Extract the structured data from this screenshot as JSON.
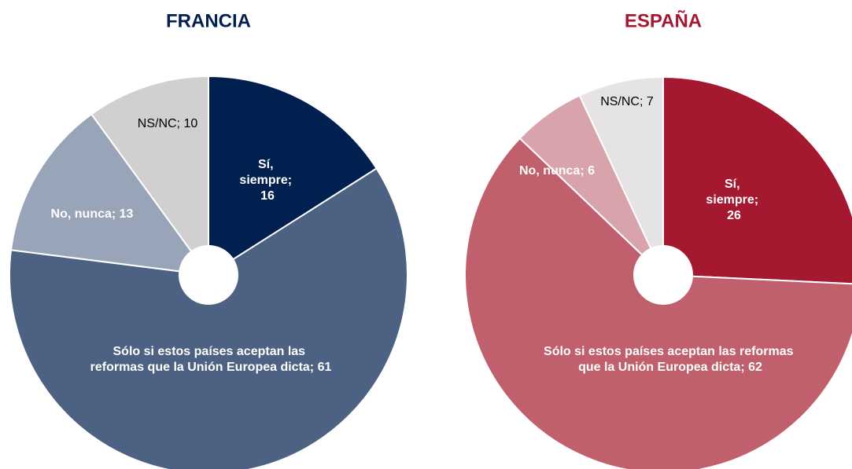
{
  "chart_data": [
    {
      "type": "donut",
      "title": "FRANCIA",
      "title_color": "#012050",
      "categories": [
        "Sí, siempre",
        "Sólo si estos países aceptan las reformas que la Unión Europea dicta",
        "No, nunca",
        "NS/NC"
      ],
      "values": [
        16,
        61,
        13,
        10
      ],
      "value_labels": [
        "Sí, siempre; 16",
        "Sólo si estos países aceptan las reformas que la Unión Europea dicta; 61",
        "No, nunca; 13",
        "NS/NC; 10"
      ],
      "colors": [
        "#012050",
        "#4d6282",
        "#98a5b8",
        "#d1cfd0"
      ]
    },
    {
      "type": "donut",
      "title": "ESPAÑA",
      "title_color": "#a51930",
      "categories": [
        "Sí, siempre",
        "Sólo si estos países aceptan las reformas que la Unión Europea dicta",
        "No, nunca",
        "NS/NC"
      ],
      "values": [
        26,
        62,
        6,
        7
      ],
      "value_labels": [
        "Sí, siempre; 26",
        "Sólo si estos países aceptan las reformas que la Unión Europea dicta; 62",
        "No, nunca; 6",
        "NS/NC; 7"
      ],
      "colors": [
        "#a51930",
        "#c0606c",
        "#d9a3ab",
        "#e5e3e4"
      ]
    }
  ]
}
